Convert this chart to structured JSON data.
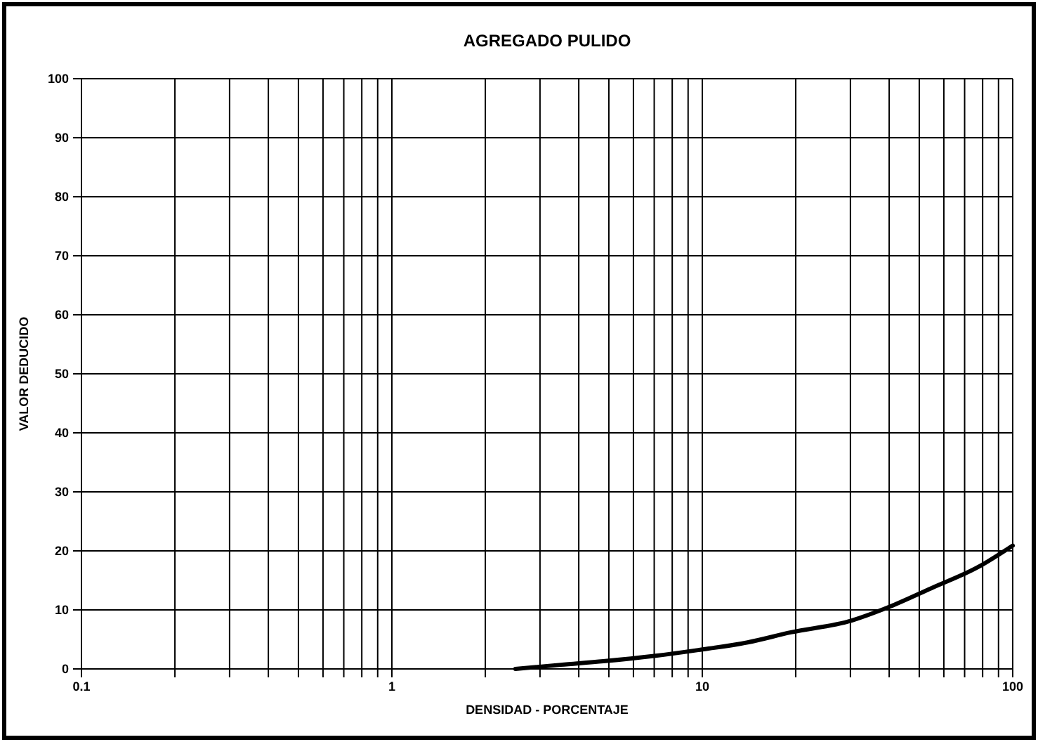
{
  "chart_data": {
    "type": "line",
    "title": "AGREGADO PULIDO",
    "xlabel": "DENSIDAD - PORCENTAJE",
    "ylabel": "VALOR DEDUCIDO",
    "log": "x",
    "grid": true,
    "marker": "none",
    "line_style": "solid",
    "x": [
      2.5,
      3.5,
      4.8,
      7,
      9.7,
      14,
      19.3,
      30.3,
      38.7,
      54.8,
      77.6,
      100
    ],
    "series": [
      {
        "color": "#000000",
        "values": [
          0,
          0.7,
          1.3,
          2.2,
          3.2,
          4.5,
          6.2,
          8.2,
          10.2,
          13.7,
          17.3,
          20.9
        ]
      }
    ],
    "xlim": [
      0.1,
      100
    ],
    "ylim": [
      0,
      100
    ],
    "xticks": [
      0.1,
      {
        "value": 0.2,
        "label": null
      },
      {
        "value": 0.3,
        "label": null
      },
      {
        "value": 0.4,
        "label": null
      },
      {
        "value": 0.5,
        "label": null
      },
      {
        "value": 0.6,
        "label": null
      },
      {
        "value": 0.7,
        "label": null
      },
      {
        "value": 0.8,
        "label": null
      },
      {
        "value": 0.9,
        "label": null
      },
      1,
      {
        "value": 2,
        "label": null
      },
      {
        "value": 3,
        "label": null
      },
      {
        "value": 4,
        "label": null
      },
      {
        "value": 5,
        "label": null
      },
      {
        "value": 6,
        "label": null
      },
      {
        "value": 7,
        "label": null
      },
      {
        "value": 8,
        "label": null
      },
      {
        "value": 9,
        "label": null
      },
      10,
      {
        "value": 20,
        "label": null
      },
      {
        "value": 30,
        "label": null
      },
      {
        "value": 40,
        "label": null
      },
      {
        "value": 50,
        "label": null
      },
      {
        "value": 60,
        "label": null
      },
      {
        "value": 70,
        "label": null
      },
      {
        "value": 80,
        "label": null
      },
      {
        "value": 90,
        "label": null
      },
      100
    ],
    "yticks": [
      0,
      10,
      20,
      30,
      40,
      50,
      60,
      70,
      80,
      90,
      100
    ]
  }
}
